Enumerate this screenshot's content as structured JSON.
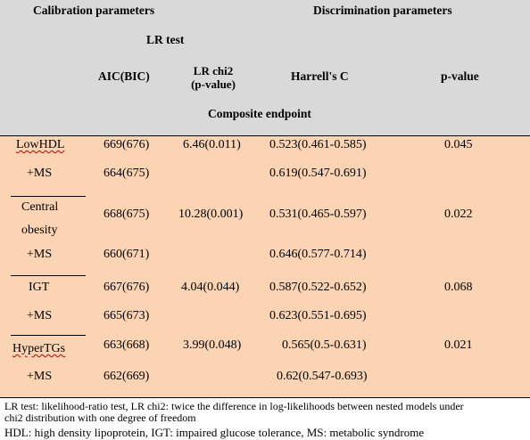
{
  "header": {
    "calibration": "Calibration parameters",
    "discrimination": "Discrimination parameters",
    "lr_test": "LR test",
    "col_aic": "AIC(BIC)",
    "col_lr_line1": "LR chi2",
    "col_lr_line2": "(p-value)",
    "col_harrell": "Harrell's C",
    "col_p": "p-value",
    "endpoint": "Composite endpoint"
  },
  "rows": [
    {
      "label": "LowHDL",
      "spell": true,
      "aic": "669(676)",
      "lr": "6.46(0.011)",
      "c": "0.523(0.461-0.585)",
      "p": "0.045"
    },
    {
      "label": "+MS",
      "aic": "664(675)",
      "lr": "",
      "c": "0.619(0.547-0.691)",
      "p": ""
    },
    {
      "label": "Central",
      "label2": "obesity",
      "aic": "668(675)",
      "lr": "10.28(0.001)",
      "c": "0.531(0.465-0.597)",
      "p": "0.022"
    },
    {
      "label": "+MS",
      "aic": "660(671)",
      "lr": "",
      "c": "0.646(0.577-0.714)",
      "p": ""
    },
    {
      "label": "IGT",
      "aic": "667(676)",
      "lr": "4.04(0.044)",
      "c": "0.587(0.522-0.652)",
      "p": "0.068"
    },
    {
      "label": "+MS",
      "aic": "665(673)",
      "lr": "",
      "c": "0.623(0.551-0.695)",
      "p": ""
    },
    {
      "label": "HyperTGs",
      "spell": true,
      "aic": "663(668)",
      "lr": "3.99(0.048)",
      "c": "0.565(0.5-0.631)",
      "p": "0.021"
    },
    {
      "label": "+MS",
      "aic": "662(669)",
      "lr": "",
      "c": "0.62(0.547-0.693)",
      "p": ""
    }
  ],
  "footnotes": {
    "line1": "LR test: likelihood-ratio test, LR chi2: twice the difference in log-likelihoods between nested models under",
    "line2": "chi2 distribution with one degree of freedom",
    "line3": "HDL: high density lipoprotein, IGT: impaired glucose tolerance, MS: metabolic syndrome"
  }
}
